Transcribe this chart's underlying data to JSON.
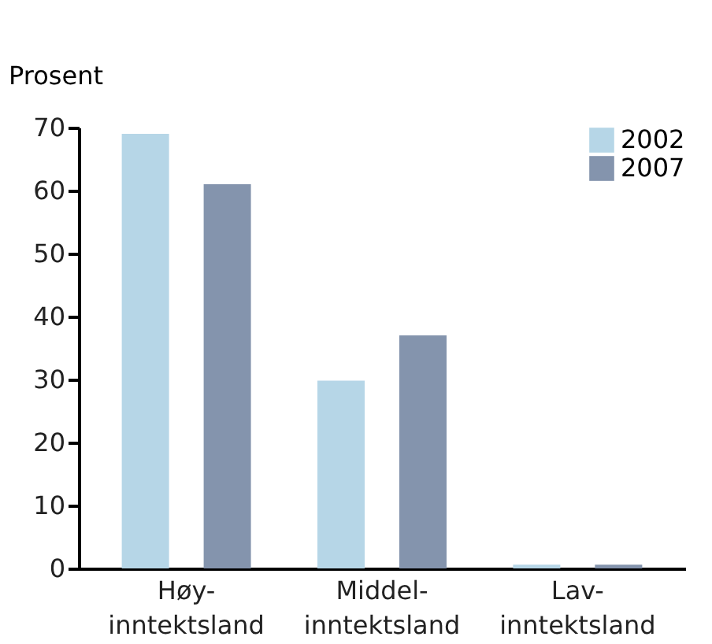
{
  "chart_data": {
    "type": "bar",
    "ylabel": "Prosent",
    "categories": [
      "Høy-\ninntektsland",
      "Middel-\ninntektsland",
      "Lav-\ninntektsland"
    ],
    "series": [
      {
        "name": "2002",
        "color": "#b6d6e7",
        "values": [
          69,
          29.8,
          0.6
        ]
      },
      {
        "name": "2007",
        "color": "#8494ad",
        "values": [
          61,
          37,
          0.6
        ]
      }
    ],
    "ylim": [
      0,
      70
    ],
    "yticks": [
      0,
      10,
      20,
      30,
      40,
      50,
      60,
      70
    ],
    "grid": false,
    "legend": "top right"
  }
}
